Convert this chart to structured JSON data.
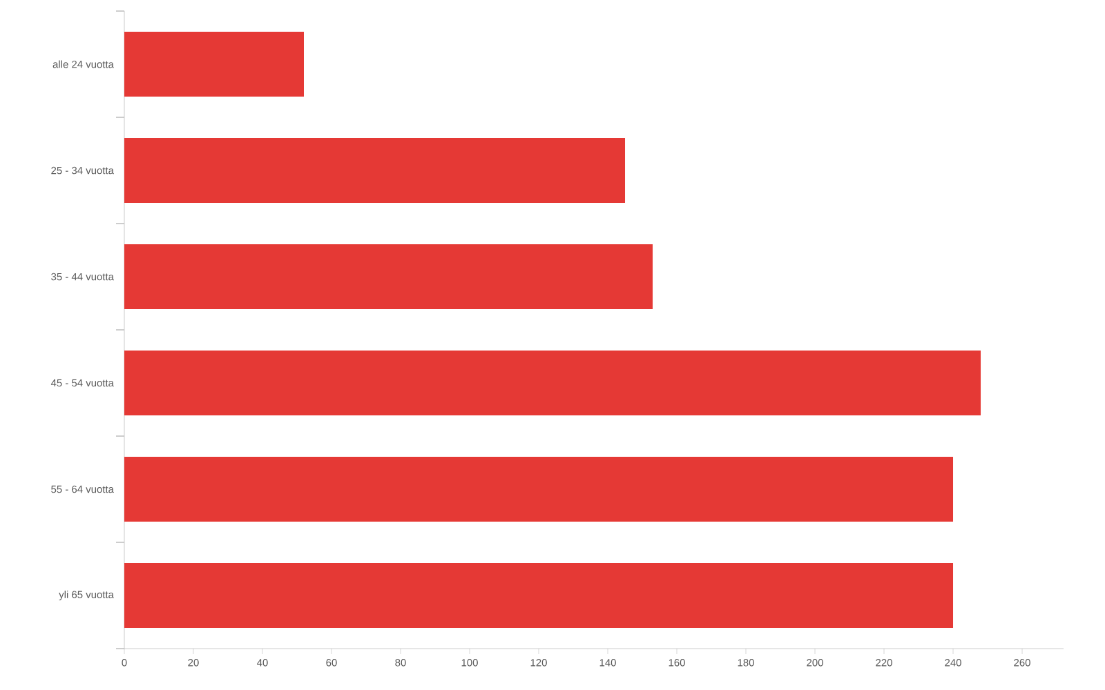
{
  "chart_data": {
    "type": "bar",
    "orientation": "horizontal",
    "categories": [
      "alle 24 vuotta",
      "25 - 34 vuotta",
      "35 - 44 vuotta",
      "45 - 54 vuotta",
      "55 - 64 vuotta",
      "yli 65 vuotta"
    ],
    "values": [
      52,
      145,
      153,
      248,
      240,
      240
    ],
    "color": "#e53935",
    "xlim": [
      0,
      272
    ],
    "xticks": [
      0,
      20,
      40,
      60,
      80,
      100,
      120,
      140,
      160,
      180,
      200,
      220,
      240,
      260
    ]
  }
}
